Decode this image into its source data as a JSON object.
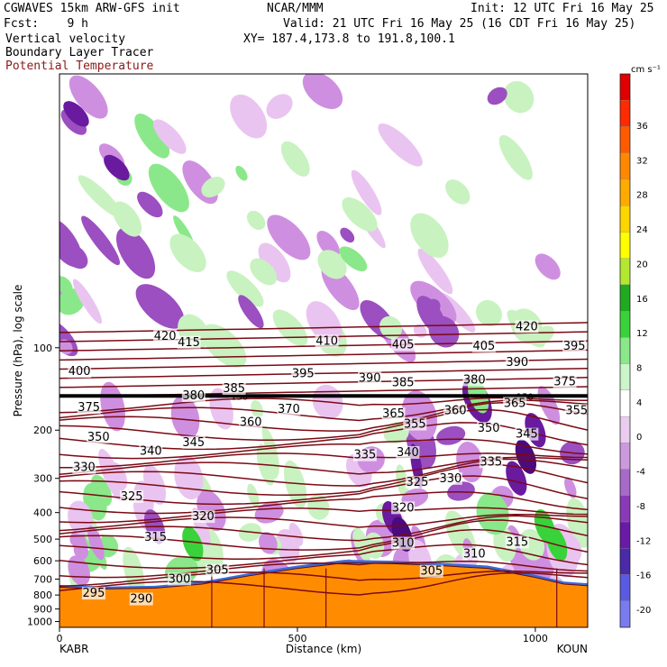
{
  "header": {
    "model": "CGWAVES 15km ARW-GFS init",
    "org": "NCAR/MMM",
    "init": "Init: 12 UTC Fri 16 May 25",
    "fcst": "Fcst:    9 h",
    "valid": "Valid: 21 UTC Fri 16 May 25 (16 CDT Fri 16 May 25)",
    "field1": "Vertical velocity",
    "field2": "Boundary Layer Tracer",
    "field3": "Potential Temperature",
    "xy": "XY= 187.4,173.8 to 191.8,100.1"
  },
  "colors": {
    "theta_contour": "#7a0a14",
    "terrain": "#ff8c00",
    "theta_label": "#7a0a14"
  },
  "chart_data": {
    "type": "cross-section",
    "ylabel": "Pressure (hPa), log scale",
    "xlabel": "Distance (km)",
    "x_ticks": [
      0,
      500,
      1000
    ],
    "x_range": [
      0,
      1110
    ],
    "y_ticks": [
      100,
      200,
      300,
      400,
      500,
      600,
      700,
      800,
      900,
      1000
    ],
    "y_range": [
      10,
      1050
    ],
    "y_scale": "log",
    "left_endpoint": "KABR",
    "right_endpoint": "KOUN",
    "colorbar_unit": "cm s⁻¹",
    "colorbar_levels": [
      -20,
      -16,
      -12,
      -8,
      -4,
      0,
      4,
      8,
      12,
      16,
      20,
      24,
      28,
      32,
      36
    ],
    "colorbar_colors": [
      "#7b7bf0",
      "#5a5ae0",
      "#4a2aa8",
      "#6a1aa8",
      "#8a3ab8",
      "#a86ac8",
      "#cc99dd",
      "#eaccf0",
      "#ffffff",
      "#ccf5cc",
      "#8ae88a",
      "#3ad23a",
      "#1faa1f",
      "#b2e830",
      "#ffff00",
      "#ffd500",
      "#ffaa00",
      "#ff8800",
      "#ff5a00",
      "#ff2a00",
      "#e00000"
    ],
    "tropopause_level_label": "150",
    "theta_labels": [
      {
        "v": "420",
        "x": 220,
        "p": 92
      },
      {
        "v": "415",
        "x": 270,
        "p": 97
      },
      {
        "v": "410",
        "x": 560,
        "p": 96
      },
      {
        "v": "405",
        "x": 720,
        "p": 99
      },
      {
        "v": "405",
        "x": 890,
        "p": 100
      },
      {
        "v": "420",
        "x": 980,
        "p": 85
      },
      {
        "v": "395",
        "x": 1080,
        "p": 100
      },
      {
        "v": "400",
        "x": 40,
        "p": 124
      },
      {
        "v": "395",
        "x": 510,
        "p": 126
      },
      {
        "v": "390",
        "x": 650,
        "p": 131
      },
      {
        "v": "385",
        "x": 720,
        "p": 136
      },
      {
        "v": "380",
        "x": 870,
        "p": 133
      },
      {
        "v": "390",
        "x": 960,
        "p": 115
      },
      {
        "v": "375",
        "x": 1060,
        "p": 135
      },
      {
        "v": "385",
        "x": 365,
        "p": 143
      },
      {
        "v": "380",
        "x": 280,
        "p": 152
      },
      {
        "v": "370",
        "x": 480,
        "p": 170
      },
      {
        "v": "375",
        "x": 60,
        "p": 168
      },
      {
        "v": "365",
        "x": 700,
        "p": 177
      },
      {
        "v": "360",
        "x": 400,
        "p": 190
      },
      {
        "v": "360",
        "x": 830,
        "p": 172
      },
      {
        "v": "355",
        "x": 745,
        "p": 193
      },
      {
        "v": "365",
        "x": 955,
        "p": 162
      },
      {
        "v": "355",
        "x": 1085,
        "p": 172
      },
      {
        "v": "350",
        "x": 900,
        "p": 200
      },
      {
        "v": "345",
        "x": 980,
        "p": 210
      },
      {
        "v": "350",
        "x": 80,
        "p": 215
      },
      {
        "v": "345",
        "x": 280,
        "p": 225
      },
      {
        "v": "340",
        "x": 190,
        "p": 242
      },
      {
        "v": "335",
        "x": 640,
        "p": 250
      },
      {
        "v": "340",
        "x": 730,
        "p": 245
      },
      {
        "v": "335",
        "x": 905,
        "p": 265
      },
      {
        "v": "330",
        "x": 50,
        "p": 278
      },
      {
        "v": "325",
        "x": 750,
        "p": 315
      },
      {
        "v": "330",
        "x": 820,
        "p": 305
      },
      {
        "v": "325",
        "x": 150,
        "p": 355
      },
      {
        "v": "320",
        "x": 720,
        "p": 390
      },
      {
        "v": "320",
        "x": 300,
        "p": 420
      },
      {
        "v": "315",
        "x": 200,
        "p": 500
      },
      {
        "v": "315",
        "x": 960,
        "p": 520
      },
      {
        "v": "310",
        "x": 720,
        "p": 525
      },
      {
        "v": "310",
        "x": 870,
        "p": 575
      },
      {
        "v": "305",
        "x": 330,
        "p": 660
      },
      {
        "v": "300",
        "x": 250,
        "p": 710
      },
      {
        "v": "305",
        "x": 780,
        "p": 665
      },
      {
        "v": "295",
        "x": 70,
        "p": 800
      },
      {
        "v": "290",
        "x": 170,
        "p": 840
      }
    ]
  }
}
